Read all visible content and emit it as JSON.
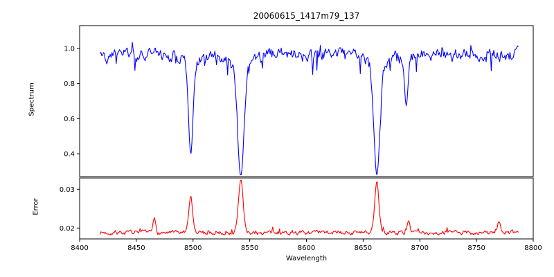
{
  "title": "20060615_1417m79_137",
  "x_axis": {
    "label": "Wavelength",
    "ticks": [
      8400,
      8450,
      8500,
      8550,
      8600,
      8650,
      8700,
      8750,
      8800
    ],
    "tick_labels": [
      "8400",
      "8450",
      "8500",
      "8550",
      "8600",
      "8650",
      "8700",
      "8750",
      "8800"
    ]
  },
  "chart_data": [
    {
      "type": "line",
      "name": "spectrum",
      "ylabel": "Spectrum",
      "color": "#0000ff",
      "xlim": [
        8400,
        8800
      ],
      "ylim": [
        0.27,
        1.13
      ],
      "y_ticks": [
        0.4,
        0.6,
        0.8,
        1.0
      ],
      "y_tick_labels": [
        "0.4",
        "0.6",
        "0.8",
        "1.0"
      ],
      "x_start": 8418,
      "x_end": 8787,
      "x_step": 0.75,
      "continuum": 0.965,
      "noise_amplitude": 0.045,
      "dip_probability": 0.07,
      "dip_max_extra": 0.1,
      "absorption_lines": [
        {
          "center": 8498.0,
          "min": 0.45,
          "width": 2.0
        },
        {
          "center": 8542.1,
          "min": 0.33,
          "width": 2.8
        },
        {
          "center": 8662.1,
          "min": 0.34,
          "width": 2.6
        },
        {
          "center": 8688.0,
          "min": 0.7,
          "width": 1.5
        }
      ],
      "seed": 42
    },
    {
      "type": "line",
      "name": "error",
      "ylabel": "Error",
      "color": "#ff0000",
      "xlim": [
        8400,
        8800
      ],
      "ylim": [
        0.0172,
        0.0329
      ],
      "y_ticks": [
        0.02,
        0.03
      ],
      "y_tick_labels": [
        "0.02",
        "0.03"
      ],
      "x_start": 8418,
      "x_end": 8787,
      "x_step": 0.75,
      "baseline": 0.0188,
      "noise_amplitude": 0.0007,
      "spike_probability": 0.06,
      "spike_max_extra": 0.0012,
      "peaks": [
        {
          "center": 8466.0,
          "height": 0.0225,
          "width": 1.2
        },
        {
          "center": 8498.0,
          "height": 0.028,
          "width": 1.6
        },
        {
          "center": 8542.1,
          "height": 0.0325,
          "width": 2.0
        },
        {
          "center": 8662.1,
          "height": 0.032,
          "width": 1.8
        },
        {
          "center": 8690.0,
          "height": 0.0225,
          "width": 1.2
        },
        {
          "center": 8770.0,
          "height": 0.0218,
          "width": 1.2
        }
      ],
      "seed": 7
    }
  ]
}
